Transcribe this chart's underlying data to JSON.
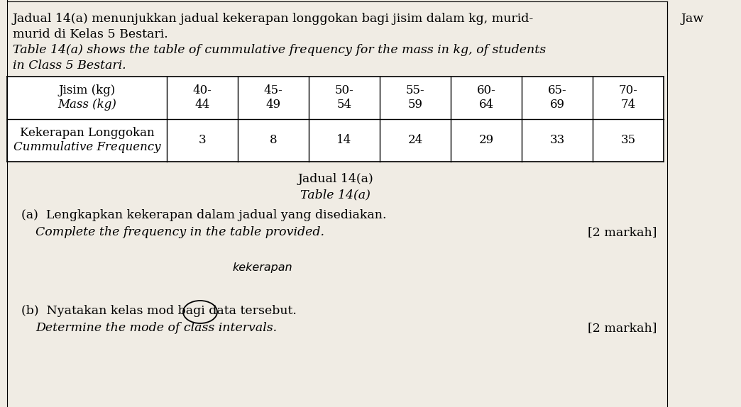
{
  "background_color": "#f0ece4",
  "white_bg": "#ffffff",
  "header_text_line1": "Jadual 14(a) menunjukkan jadual kekerapan longgokan bagi jisim dalam kg, murid-",
  "header_text_line1_right": "Jaw",
  "header_text_line2": "murid di Kelas 5 Bestari.",
  "header_text_line3": "Table 14(a) shows the table of cummulative frequency for the mass in kg, of students",
  "header_text_line4": "in Class 5 Bestari.",
  "table_col1_row1_line1": "Jisim (kg)",
  "table_col1_row1_line2": "Mass (kg)",
  "table_col1_row2_line1": "Kekerapan Longgokan",
  "table_col1_row2_line2": "Cummulative Frequency",
  "mass_ranges_top": [
    "40-",
    "45-",
    "50-",
    "55-",
    "60-",
    "65-",
    "70-"
  ],
  "mass_ranges_bot": [
    "44",
    "49",
    "54",
    "59",
    "64",
    "69",
    "74"
  ],
  "cum_freq": [
    "3",
    "8",
    "14",
    "24",
    "29",
    "33",
    "35"
  ],
  "table_caption_line1": "Jadual 14(a)",
  "table_caption_line2": "Table 14(a)",
  "part_a_text_line1": "(a)  Lengkapkan kekerapan dalam jadual yang disediakan.",
  "part_a_text_line2": "Complete the frequency in the table provided.",
  "part_a_mark": "[2 markah]",
  "handwritten_text": "kekerapan",
  "part_b_text_line1": "(b)  Nyatakan kelas mod bagi data tersebut.",
  "part_b_text_line2": "Determine the mode of class intervals.",
  "part_b_mark": "[2 markah]",
  "font_size_body": 12.5,
  "font_size_table": 12.0,
  "font_size_mark": 12.5,
  "font_size_handwrite": 11.5
}
